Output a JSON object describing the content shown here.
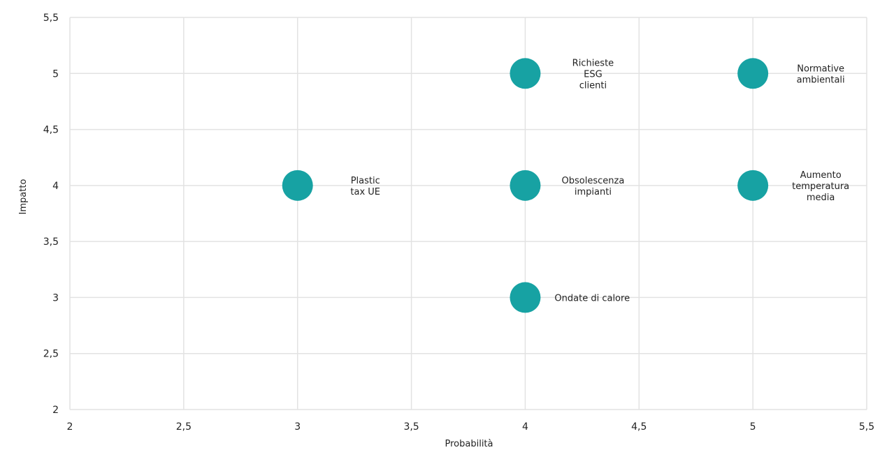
{
  "chart_data": {
    "type": "scatter",
    "title": "",
    "xlabel": "Probabilità",
    "ylabel": "Impatto",
    "xlim": [
      2,
      5.5
    ],
    "ylim": [
      2,
      5.5
    ],
    "x_ticks": [
      "2",
      "2,5",
      "3",
      "3,5",
      "4",
      "4,5",
      "5",
      "5,5"
    ],
    "y_ticks": [
      "2",
      "2,5",
      "3",
      "3,5",
      "4",
      "4,5",
      "5",
      "5,5"
    ],
    "grid": true,
    "legend": "none",
    "point_color": "#17a2a3",
    "points": [
      {
        "x": 3,
        "y": 4,
        "label": [
          "Plastic",
          "tax UE"
        ]
      },
      {
        "x": 4,
        "y": 5,
        "label": [
          "Richieste",
          "ESG",
          "clienti"
        ]
      },
      {
        "x": 4,
        "y": 4,
        "label": [
          "Obsolescenza",
          "impianti"
        ]
      },
      {
        "x": 4,
        "y": 3,
        "label": [
          "Ondate di calore"
        ]
      },
      {
        "x": 5,
        "y": 5,
        "label": [
          "Normative",
          "ambientali"
        ]
      },
      {
        "x": 5,
        "y": 4,
        "label": [
          "Aumento",
          "temperatura",
          "media"
        ]
      }
    ]
  }
}
